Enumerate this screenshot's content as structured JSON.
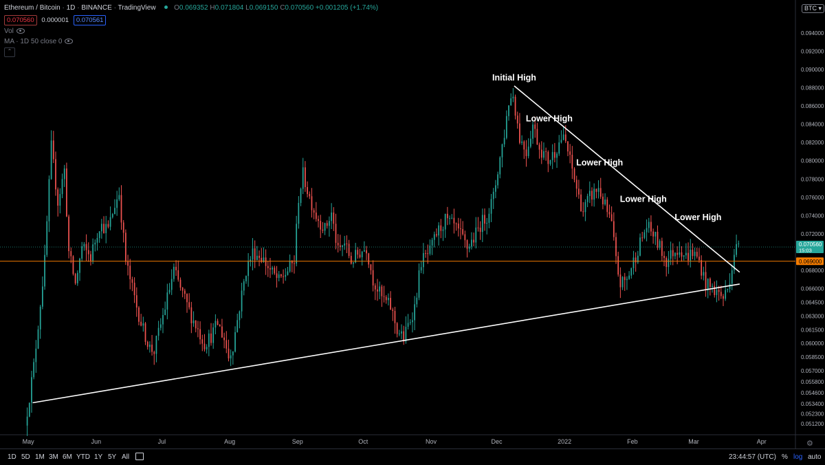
{
  "header": {
    "symbol": "Ethereum / Bitcoin",
    "interval": "1D",
    "exchange": "BINANCE",
    "source": "TradingView",
    "sep": "·",
    "open_label": "O",
    "open": "0.069352",
    "high_label": "H",
    "high": "0.071804",
    "low_label": "L",
    "low": "0.069150",
    "close_label": "C",
    "close": "0.070560",
    "change": "+0.001205 (+1.74%)",
    "sell_price": "0.070560",
    "spread": "0.000001",
    "buy_price": "0.070561",
    "vol_label": "Vol",
    "ma_label": "MA · 1D 50 close 0",
    "collapse_icon": "chevron-up-icon",
    "status_dot_color": "#26a69a"
  },
  "currency_pill": "BTC",
  "colors": {
    "up": "#26a69a",
    "down": "#ef5350",
    "orange_line": "#f57c00",
    "trendline": "#ffffff",
    "background": "#000000"
  },
  "chart_data": {
    "type": "candlestick",
    "symbol": "ETH/BTC",
    "timeframe": "1D",
    "ylim": [
      0.0503,
      0.0958
    ],
    "y_ticks": [
      "0.094000",
      "0.092000",
      "0.090000",
      "0.088000",
      "0.086000",
      "0.084000",
      "0.082000",
      "0.080000",
      "0.078000",
      "0.076000",
      "0.074000",
      "0.072000",
      "0.068000",
      "0.066000",
      "0.064500",
      "0.063000",
      "0.061500",
      "0.060000",
      "0.058500",
      "0.057000",
      "0.055800",
      "0.054600",
      "0.053400",
      "0.052300",
      "0.051200"
    ],
    "x_ticks": [
      {
        "label": "May",
        "date": "2021-05-01"
      },
      {
        "label": "Jun",
        "date": "2021-06-01"
      },
      {
        "label": "Jul",
        "date": "2021-07-01"
      },
      {
        "label": "Aug",
        "date": "2021-08-01"
      },
      {
        "label": "Sep",
        "date": "2021-09-01"
      },
      {
        "label": "Oct",
        "date": "2021-10-01"
      },
      {
        "label": "Nov",
        "date": "2021-11-01"
      },
      {
        "label": "Dec",
        "date": "2021-12-01"
      },
      {
        "label": "2022",
        "date": "2022-01-01"
      },
      {
        "label": "Feb",
        "date": "2022-02-01"
      },
      {
        "label": "Mar",
        "date": "2022-03-01"
      },
      {
        "label": "Apr",
        "date": "2022-04-01"
      }
    ],
    "x_range": [
      "2021-04-30",
      "2022-04-08"
    ],
    "price_path": [
      [
        "2021-04-30",
        0.051
      ],
      [
        "2021-05-04",
        0.0575
      ],
      [
        "2021-05-09",
        0.069
      ],
      [
        "2021-05-12",
        0.0815
      ],
      [
        "2021-05-15",
        0.0755
      ],
      [
        "2021-05-18",
        0.079
      ],
      [
        "2021-05-20",
        0.07
      ],
      [
        "2021-05-23",
        0.0665
      ],
      [
        "2021-05-26",
        0.0705
      ],
      [
        "2021-05-30",
        0.0695
      ],
      [
        "2021-06-03",
        0.073
      ],
      [
        "2021-06-07",
        0.0725
      ],
      [
        "2021-06-10",
        0.0752
      ],
      [
        "2021-06-12",
        0.0765
      ],
      [
        "2021-06-15",
        0.069
      ],
      [
        "2021-06-20",
        0.064
      ],
      [
        "2021-06-23",
        0.0615
      ],
      [
        "2021-06-26",
        0.0595
      ],
      [
        "2021-06-28",
        0.0592
      ],
      [
        "2021-07-02",
        0.063
      ],
      [
        "2021-07-05",
        0.066
      ],
      [
        "2021-07-07",
        0.068
      ],
      [
        "2021-07-10",
        0.066
      ],
      [
        "2021-07-15",
        0.063
      ],
      [
        "2021-07-18",
        0.0615
      ],
      [
        "2021-07-21",
        0.06
      ],
      [
        "2021-07-24",
        0.0608
      ],
      [
        "2021-07-27",
        0.0622
      ],
      [
        "2021-07-30",
        0.0605
      ],
      [
        "2021-08-01",
        0.0585
      ],
      [
        "2021-08-03",
        0.0598
      ],
      [
        "2021-08-06",
        0.064
      ],
      [
        "2021-08-09",
        0.068
      ],
      [
        "2021-08-12",
        0.07
      ],
      [
        "2021-08-16",
        0.0695
      ],
      [
        "2021-08-20",
        0.068
      ],
      [
        "2021-08-24",
        0.0668
      ],
      [
        "2021-08-28",
        0.068
      ],
      [
        "2021-08-31",
        0.069
      ],
      [
        "2021-09-02",
        0.076
      ],
      [
        "2021-09-04",
        0.0785
      ],
      [
        "2021-09-07",
        0.076
      ],
      [
        "2021-09-10",
        0.074
      ],
      [
        "2021-09-14",
        0.0725
      ],
      [
        "2021-09-17",
        0.0742
      ],
      [
        "2021-09-20",
        0.07
      ],
      [
        "2021-09-23",
        0.071
      ],
      [
        "2021-09-26",
        0.069
      ],
      [
        "2021-09-30",
        0.07
      ],
      [
        "2021-10-03",
        0.0705
      ],
      [
        "2021-10-06",
        0.067
      ],
      [
        "2021-10-10",
        0.065
      ],
      [
        "2021-10-14",
        0.064
      ],
      [
        "2021-10-17",
        0.0615
      ],
      [
        "2021-10-20",
        0.0605
      ],
      [
        "2021-10-22",
        0.062
      ],
      [
        "2021-10-25",
        0.064
      ],
      [
        "2021-10-28",
        0.069
      ],
      [
        "2021-11-01",
        0.07
      ],
      [
        "2021-11-04",
        0.072
      ],
      [
        "2021-11-08",
        0.0735
      ],
      [
        "2021-11-12",
        0.0728
      ],
      [
        "2021-11-15",
        0.0718
      ],
      [
        "2021-11-18",
        0.0705
      ],
      [
        "2021-11-21",
        0.0715
      ],
      [
        "2021-11-24",
        0.073
      ],
      [
        "2021-11-27",
        0.074
      ],
      [
        "2021-11-30",
        0.076
      ],
      [
        "2021-12-02",
        0.079
      ],
      [
        "2021-12-05",
        0.083
      ],
      [
        "2021-12-07",
        0.0865
      ],
      [
        "2021-12-09",
        0.0872
      ],
      [
        "2021-12-12",
        0.0825
      ],
      [
        "2021-12-15",
        0.081
      ],
      [
        "2021-12-18",
        0.084
      ],
      [
        "2021-12-21",
        0.0815
      ],
      [
        "2021-12-25",
        0.08
      ],
      [
        "2021-12-28",
        0.081
      ],
      [
        "2021-12-31",
        0.0825
      ],
      [
        "2022-01-02",
        0.082
      ],
      [
        "2022-01-05",
        0.079
      ],
      [
        "2022-01-08",
        0.076
      ],
      [
        "2022-01-10",
        0.0745
      ],
      [
        "2022-01-13",
        0.076
      ],
      [
        "2022-01-17",
        0.077
      ],
      [
        "2022-01-20",
        0.075
      ],
      [
        "2022-01-23",
        0.073
      ],
      [
        "2022-01-25",
        0.069
      ],
      [
        "2022-01-27",
        0.0665
      ],
      [
        "2022-01-30",
        0.067
      ],
      [
        "2022-02-02",
        0.069
      ],
      [
        "2022-02-05",
        0.071
      ],
      [
        "2022-02-08",
        0.0728
      ],
      [
        "2022-02-11",
        0.072
      ],
      [
        "2022-02-14",
        0.0705
      ],
      [
        "2022-02-17",
        0.069
      ],
      [
        "2022-02-20",
        0.07
      ],
      [
        "2022-02-23",
        0.0705
      ],
      [
        "2022-02-26",
        0.0695
      ],
      [
        "2022-03-01",
        0.07
      ],
      [
        "2022-03-04",
        0.069
      ],
      [
        "2022-03-07",
        0.0665
      ],
      [
        "2022-03-10",
        0.066
      ],
      [
        "2022-03-13",
        0.0655
      ],
      [
        "2022-03-15",
        0.065
      ],
      [
        "2022-03-17",
        0.066
      ],
      [
        "2022-03-19",
        0.0685
      ],
      [
        "2022-03-20",
        0.07
      ],
      [
        "2022-03-21",
        0.0705
      ]
    ],
    "horizontal_level": 0.069,
    "current_price": 0.07056,
    "trendlines": [
      {
        "name": "descending resistance",
        "start": [
          "2021-12-09",
          0.0882
        ],
        "end": [
          "2022-03-22",
          0.0678
        ]
      },
      {
        "name": "ascending support",
        "start": [
          "2021-05-03",
          0.0535
        ],
        "end": [
          "2022-03-22",
          0.0665
        ]
      }
    ],
    "annotations": [
      {
        "text": "Initial High",
        "date": "2021-12-09",
        "price": 0.0885
      },
      {
        "text": "Lower High",
        "date": "2021-12-25",
        "price": 0.084
      },
      {
        "text": "Lower High",
        "date": "2022-01-17",
        "price": 0.0792
      },
      {
        "text": "Lower High",
        "date": "2022-02-06",
        "price": 0.0752
      },
      {
        "text": "Lower High",
        "date": "2022-03-03",
        "price": 0.0732
      }
    ],
    "price_labels": {
      "current": "0.070560",
      "countdown": "15:03",
      "level": "0.069000"
    }
  },
  "bottom_bar": {
    "timeframes": [
      "1D",
      "5D",
      "1M",
      "3M",
      "6M",
      "YTD",
      "1Y",
      "5Y",
      "All"
    ],
    "clock": "23:44:57 (UTC)",
    "percent": "%",
    "log": "log",
    "auto": "auto",
    "calendar_icon": "date-range-icon"
  }
}
